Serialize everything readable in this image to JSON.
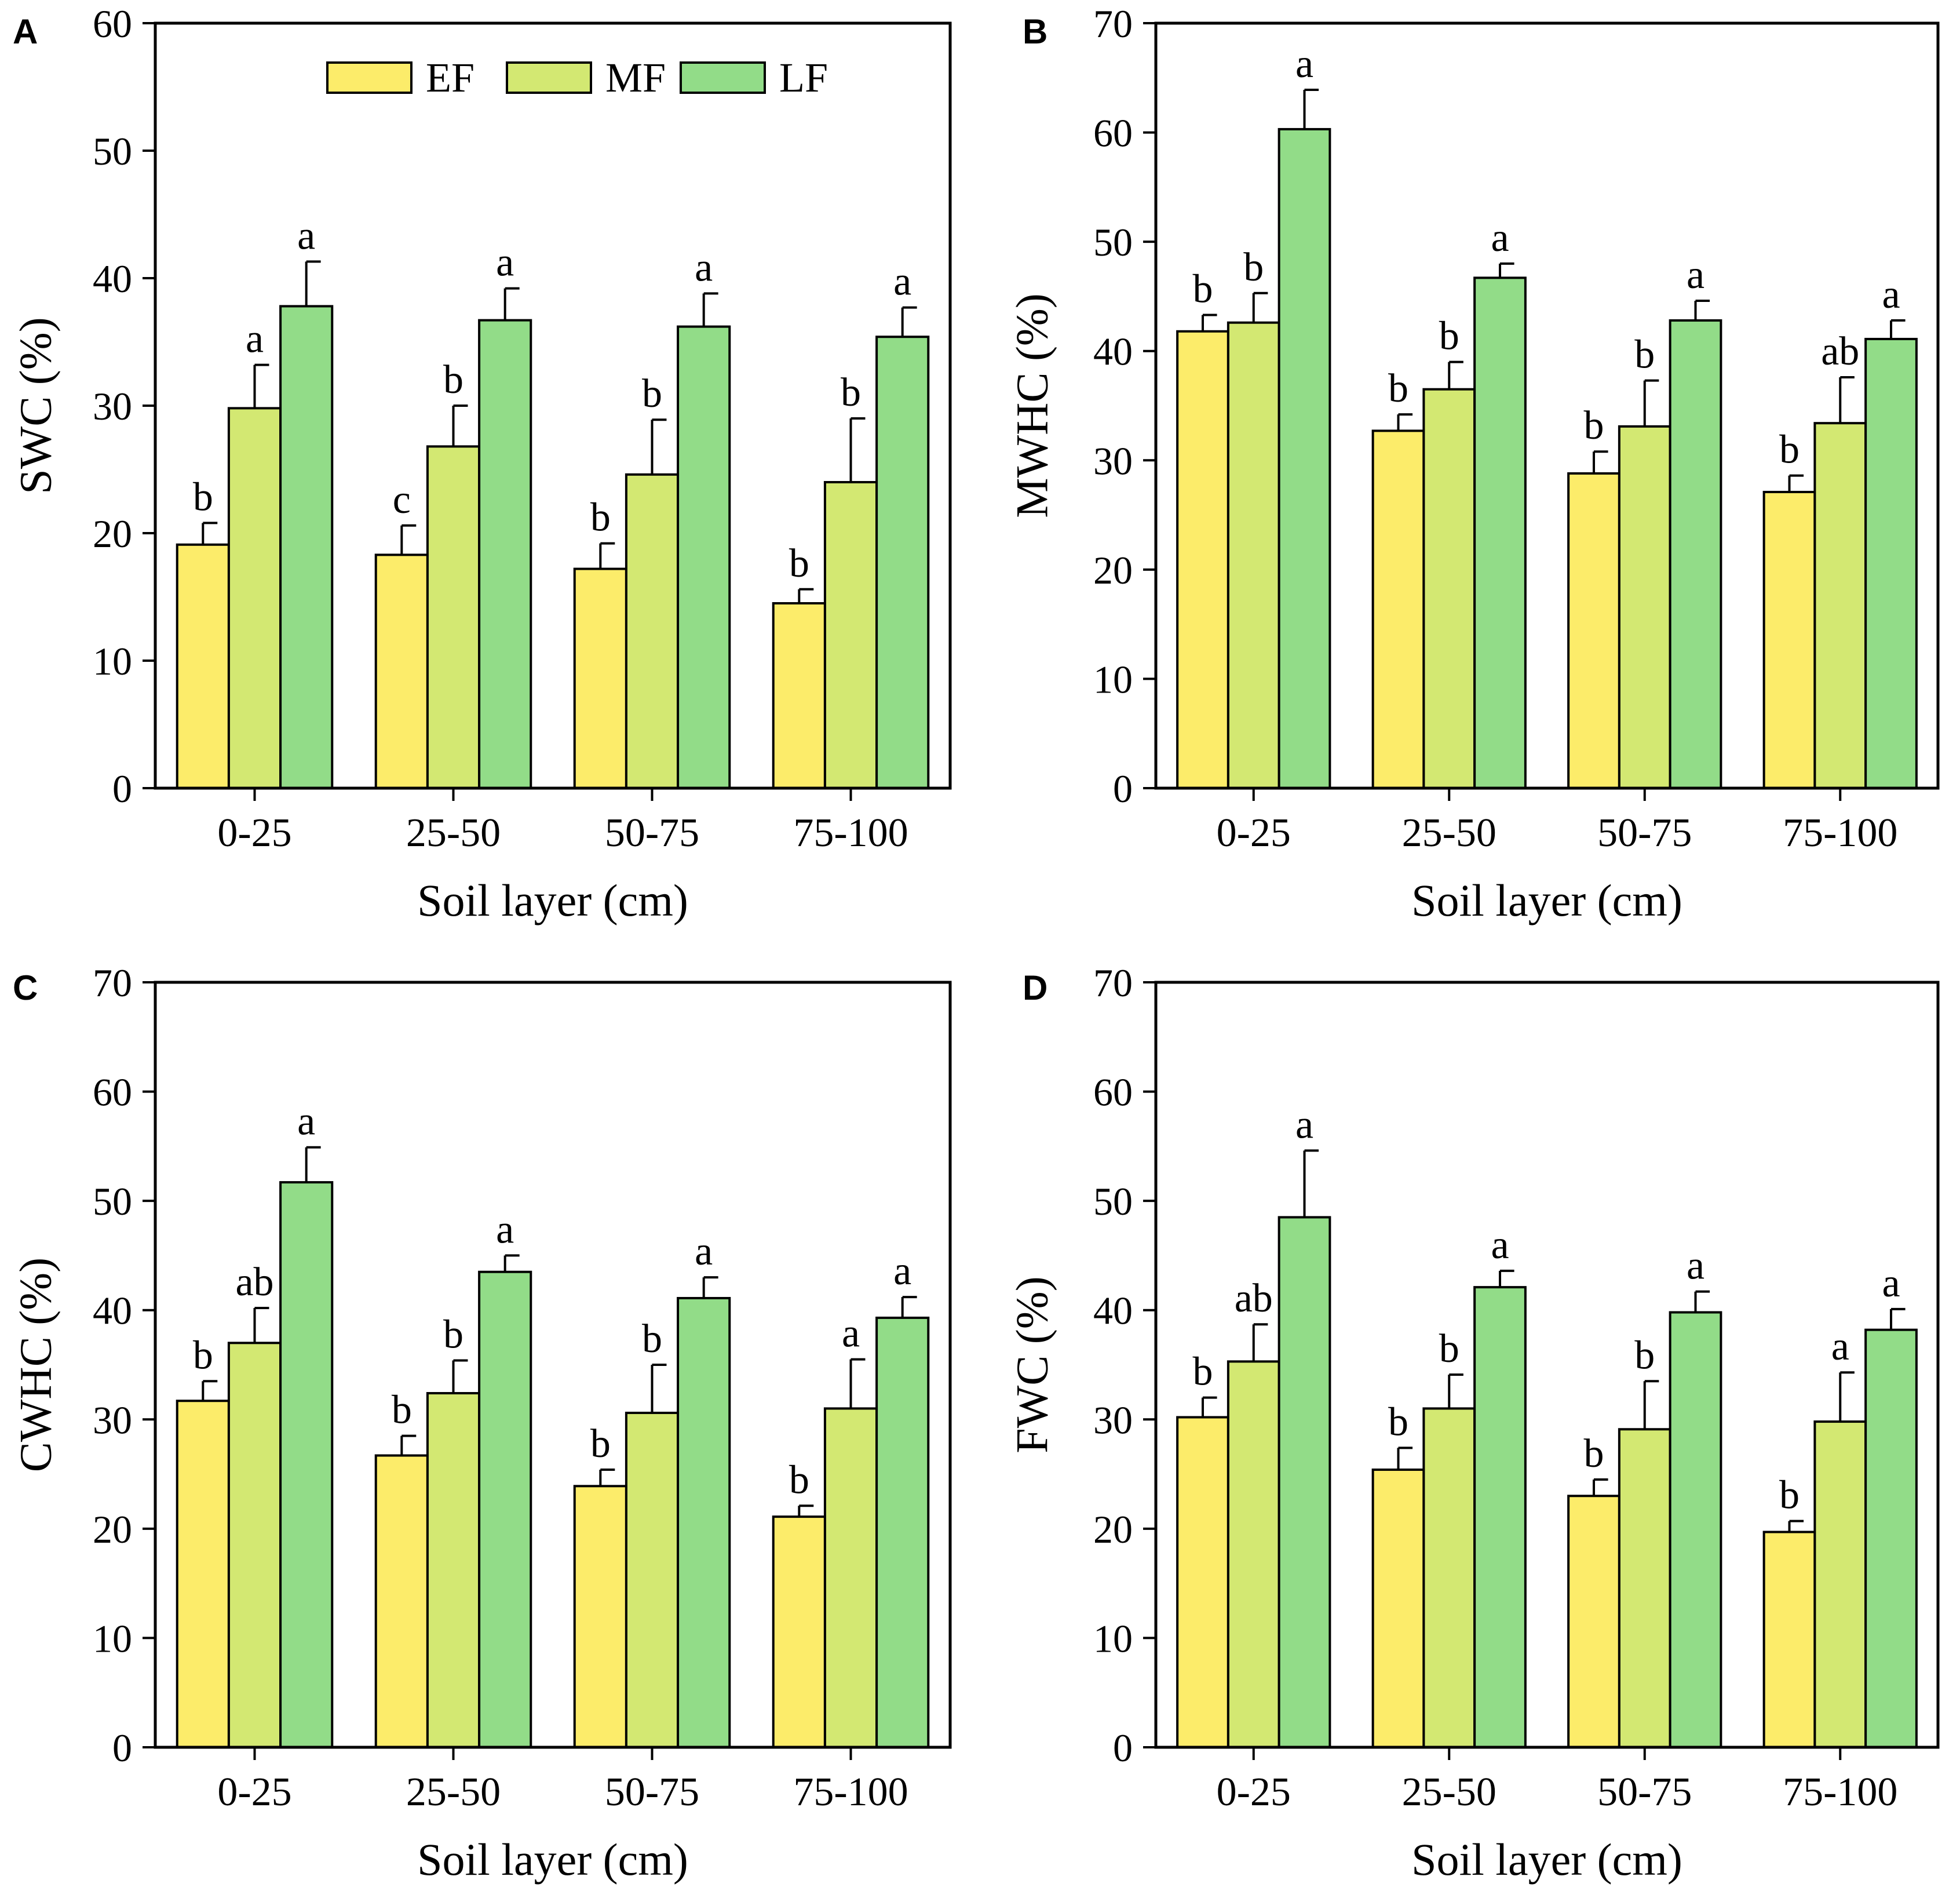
{
  "figure": {
    "legend": [
      {
        "name": "EF",
        "color": "#fcec6a"
      },
      {
        "name": "MF",
        "color": "#d3e872"
      },
      {
        "name": "LF",
        "color": "#92dc88"
      }
    ]
  },
  "chart_data": [
    {
      "panel": "A",
      "type": "bar",
      "ylabel": "SWC (%)",
      "xlabel": "Soil layer (cm)",
      "ylim": [
        0,
        60
      ],
      "yticks": [
        0,
        10,
        20,
        30,
        40,
        50,
        60
      ],
      "categories": [
        "0-25",
        "25-50",
        "50-75",
        "75-100"
      ],
      "legend_position": "top-center",
      "series": [
        {
          "name": "EF",
          "values": [
            19.1,
            18.3,
            17.2,
            14.5
          ],
          "errors": [
            1.7,
            2.3,
            2.0,
            1.1
          ],
          "letters": [
            "b",
            "c",
            "b",
            "b"
          ]
        },
        {
          "name": "MF",
          "values": [
            29.8,
            26.8,
            24.6,
            24.0
          ],
          "errors": [
            3.4,
            3.2,
            4.3,
            5.0
          ],
          "letters": [
            "a",
            "b",
            "b",
            "b"
          ]
        },
        {
          "name": "LF",
          "values": [
            37.8,
            36.7,
            36.2,
            35.4
          ],
          "errors": [
            3.5,
            2.5,
            2.6,
            2.3
          ],
          "letters": [
            "a",
            "a",
            "a",
            "a"
          ]
        }
      ]
    },
    {
      "panel": "B",
      "type": "bar",
      "ylabel": "MWHC (%)",
      "xlabel": "Soil layer (cm)",
      "ylim": [
        0,
        70
      ],
      "yticks": [
        0,
        10,
        20,
        30,
        40,
        50,
        60,
        70
      ],
      "categories": [
        "0-25",
        "25-50",
        "50-75",
        "75-100"
      ],
      "series": [
        {
          "name": "EF",
          "values": [
            41.8,
            32.7,
            28.8,
            27.1
          ],
          "errors": [
            1.5,
            1.5,
            2.0,
            1.5
          ],
          "letters": [
            "b",
            "b",
            "b",
            "b"
          ]
        },
        {
          "name": "MF",
          "values": [
            42.6,
            36.5,
            33.1,
            33.4
          ],
          "errors": [
            2.7,
            2.5,
            4.2,
            4.2
          ],
          "letters": [
            "b",
            "b",
            "b",
            "ab"
          ]
        },
        {
          "name": "LF",
          "values": [
            60.3,
            46.7,
            42.8,
            41.1
          ],
          "errors": [
            3.6,
            1.3,
            1.8,
            1.7
          ],
          "letters": [
            "a",
            "a",
            "a",
            "a"
          ]
        }
      ]
    },
    {
      "panel": "C",
      "type": "bar",
      "ylabel": "CWHC (%)",
      "xlabel": "Soil layer (cm)",
      "ylim": [
        0,
        70
      ],
      "yticks": [
        0,
        10,
        20,
        30,
        40,
        50,
        60,
        70
      ],
      "categories": [
        "0-25",
        "25-50",
        "50-75",
        "75-100"
      ],
      "series": [
        {
          "name": "EF",
          "values": [
            31.7,
            26.7,
            23.9,
            21.1
          ],
          "errors": [
            1.8,
            1.8,
            1.5,
            1.0
          ],
          "letters": [
            "b",
            "b",
            "b",
            "b"
          ]
        },
        {
          "name": "MF",
          "values": [
            37.0,
            32.4,
            30.6,
            31.0
          ],
          "errors": [
            3.2,
            3.0,
            4.4,
            4.5
          ],
          "letters": [
            "ab",
            "b",
            "b",
            "a"
          ]
        },
        {
          "name": "LF",
          "values": [
            51.7,
            43.5,
            41.1,
            39.3
          ],
          "errors": [
            3.2,
            1.5,
            1.9,
            1.9
          ],
          "letters": [
            "a",
            "a",
            "a",
            "a"
          ]
        }
      ]
    },
    {
      "panel": "D",
      "type": "bar",
      "ylabel": "FWC (%)",
      "xlabel": "Soil layer (cm)",
      "ylim": [
        0,
        70
      ],
      "yticks": [
        0,
        10,
        20,
        30,
        40,
        50,
        60,
        70
      ],
      "categories": [
        "0-25",
        "25-50",
        "50-75",
        "75-100"
      ],
      "series": [
        {
          "name": "EF",
          "values": [
            30.2,
            25.4,
            23.0,
            19.7
          ],
          "errors": [
            1.8,
            2.0,
            1.5,
            1.0
          ],
          "letters": [
            "b",
            "b",
            "b",
            "b"
          ]
        },
        {
          "name": "MF",
          "values": [
            35.3,
            31.0,
            29.1,
            29.8
          ],
          "errors": [
            3.4,
            3.1,
            4.4,
            4.5
          ],
          "letters": [
            "ab",
            "b",
            "b",
            "a"
          ]
        },
        {
          "name": "LF",
          "values": [
            48.5,
            42.1,
            39.8,
            38.2
          ],
          "errors": [
            6.1,
            1.5,
            1.9,
            1.9
          ],
          "letters": [
            "a",
            "a",
            "a",
            "a"
          ]
        }
      ]
    }
  ]
}
